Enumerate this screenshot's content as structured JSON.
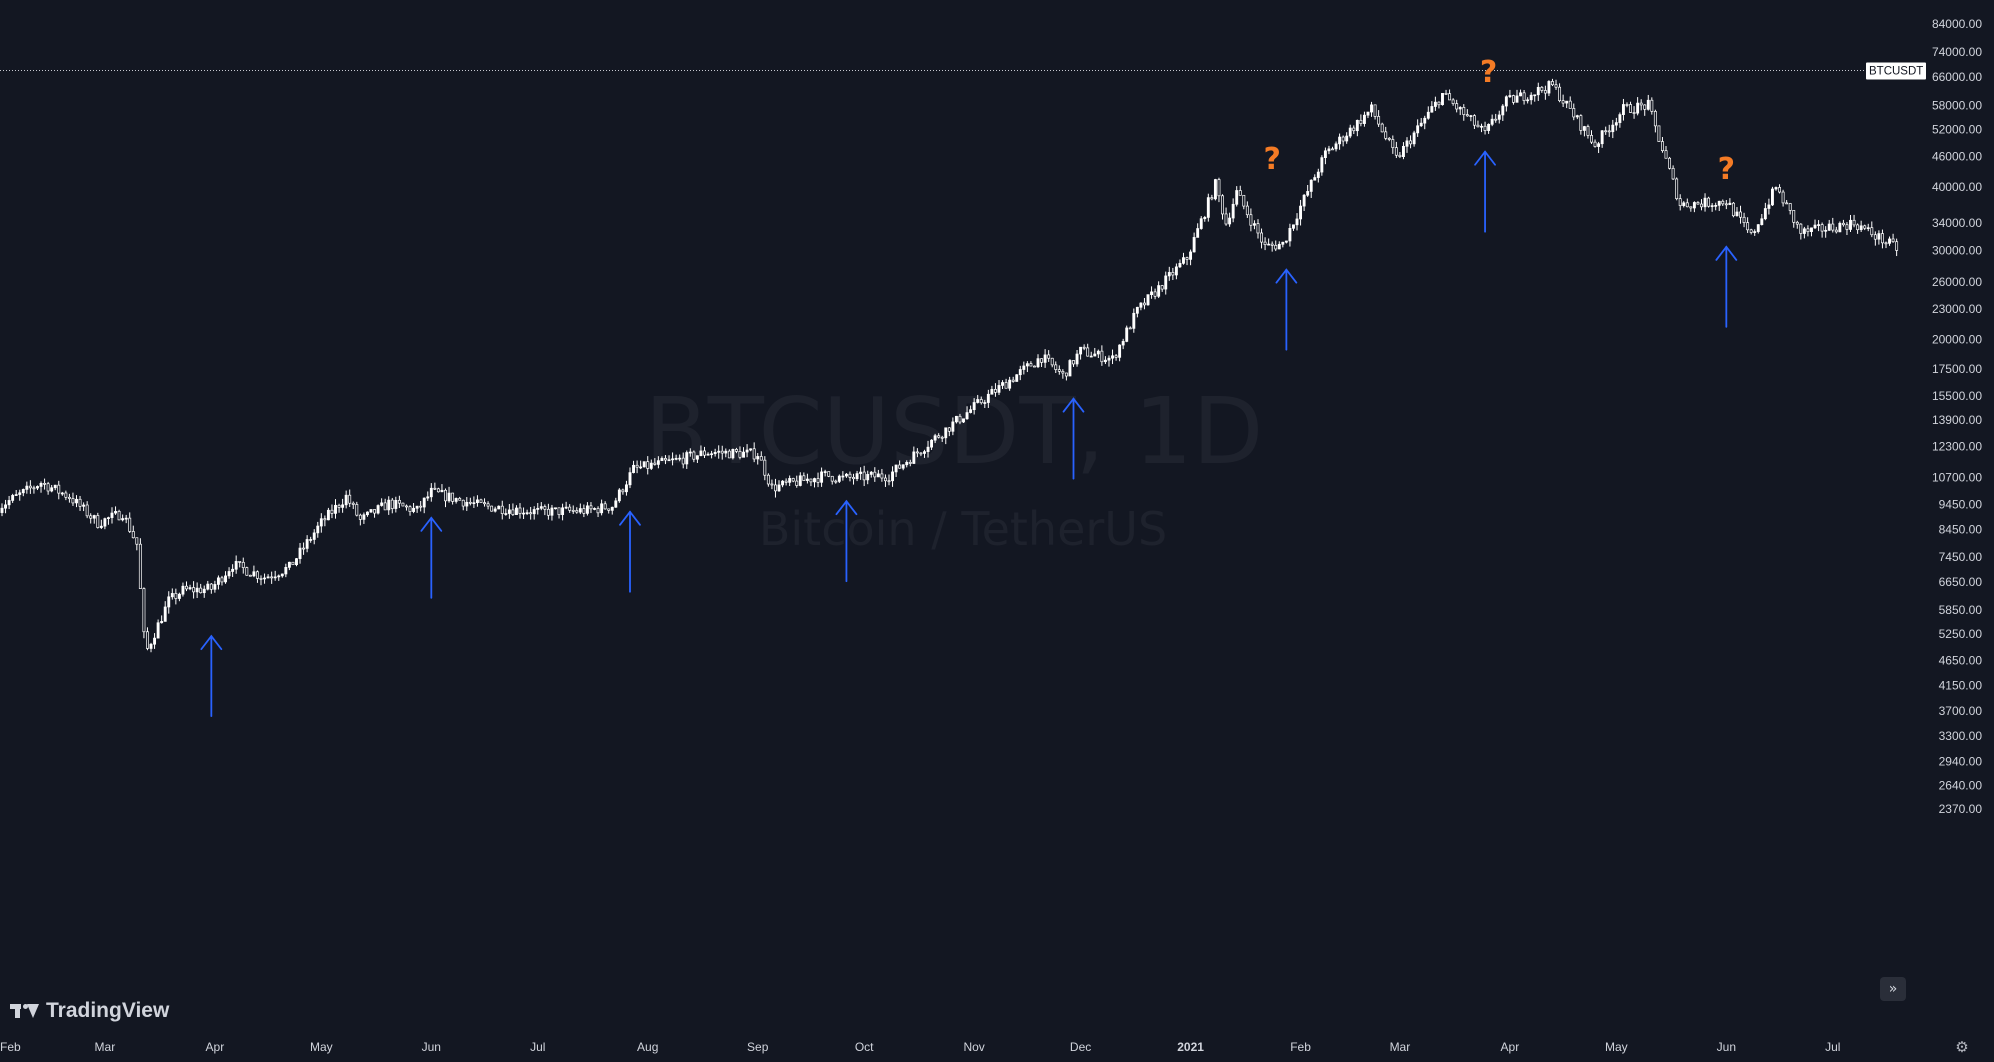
{
  "symbol_tag": "BTCUSDT",
  "watermark": {
    "title": "BTCUSDT, 1D",
    "subtitle": "Bitcoin / TetherUS"
  },
  "logo": {
    "text": "TradingView",
    "icon": "tradingview-logo-icon"
  },
  "controls": {
    "scroll_right_icon": "double-chevron-right-icon",
    "settings_icon": "gear-icon"
  },
  "colors": {
    "background": "#131722",
    "candles": "#ffffff",
    "arrows": "#2962ff",
    "question_marks": "#f47b25",
    "text": "#d1d4dc"
  },
  "chart_data": {
    "type": "candlestick",
    "scale": "log",
    "grid": false,
    "y_axis_position": "right",
    "y_ticks": [
      84000,
      74000,
      66000,
      58000,
      52000,
      46000,
      40000,
      34000,
      30000,
      26000,
      23000,
      20000,
      17500,
      15500,
      13900,
      12300,
      10700,
      9450,
      8450,
      7450,
      6650,
      5850,
      5250,
      4650,
      4150,
      3700,
      3300,
      2940,
      2640,
      2370
    ],
    "y_tick_labels": [
      "84000.00",
      "74000.00",
      "66000.00",
      "58000.00",
      "52000.00",
      "46000.00",
      "40000.00",
      "34000.00",
      "30000.00",
      "26000.00",
      "23000.00",
      "20000.00",
      "17500.00",
      "15500.00",
      "13900.00",
      "12300.00",
      "10700.00",
      "9450.00",
      "8450.00",
      "7450.00",
      "6650.00",
      "5850.00",
      "5250.00",
      "4650.00",
      "4150.00",
      "3700.00",
      "3300.00",
      "2940.00",
      "2640.00",
      "2370.00"
    ],
    "x_labels": [
      "Feb",
      "Mar",
      "Apr",
      "May",
      "Jun",
      "Jul",
      "Aug",
      "Sep",
      "Oct",
      "Nov",
      "Dec",
      "2021",
      "Feb",
      "Mar",
      "Apr",
      "May",
      "Jun",
      "Jul"
    ],
    "x_label_dates": [
      "2020-02-01",
      "2020-03-01",
      "2020-04-01",
      "2020-05-01",
      "2020-06-01",
      "2020-07-01",
      "2020-08-01",
      "2020-09-01",
      "2020-10-01",
      "2020-11-01",
      "2020-12-01",
      "2021-01-01",
      "2021-02-01",
      "2021-03-01",
      "2021-04-01",
      "2021-05-01",
      "2021-06-01",
      "2021-07-01"
    ],
    "x_range": [
      "2020-02-01",
      "2021-07-25"
    ],
    "horizontal_line": {
      "label": "BTCUSDT",
      "price": 68000,
      "style": "dotted"
    },
    "price_path": [
      [
        "2020-01-31",
        9350
      ],
      [
        "2020-02-12",
        10450
      ],
      [
        "2020-02-20",
        9800
      ],
      [
        "2020-02-28",
        8700
      ],
      [
        "2020-03-06",
        9100
      ],
      [
        "2020-03-10",
        7900
      ],
      [
        "2020-03-12",
        5200
      ],
      [
        "2020-03-13",
        4900
      ],
      [
        "2020-03-19",
        6100
      ],
      [
        "2020-03-23",
        6400
      ],
      [
        "2020-03-31",
        6450
      ],
      [
        "2020-04-06",
        7200
      ],
      [
        "2020-04-15",
        6800
      ],
      [
        "2020-04-22",
        7100
      ],
      [
        "2020-05-01",
        8700
      ],
      [
        "2020-05-08",
        9800
      ],
      [
        "2020-05-12",
        8800
      ],
      [
        "2020-05-20",
        9500
      ],
      [
        "2020-05-28",
        9200
      ],
      [
        "2020-06-01",
        10000
      ],
      [
        "2020-06-15",
        9400
      ],
      [
        "2020-07-01",
        9150
      ],
      [
        "2020-07-15",
        9200
      ],
      [
        "2020-07-22",
        9400
      ],
      [
        "2020-07-28",
        11100
      ],
      [
        "2020-08-10",
        11600
      ],
      [
        "2020-08-18",
        12000
      ],
      [
        "2020-09-01",
        11900
      ],
      [
        "2020-09-05",
        10200
      ],
      [
        "2020-09-20",
        10800
      ],
      [
        "2020-09-25",
        10650
      ],
      [
        "2020-10-08",
        10800
      ],
      [
        "2020-10-21",
        12800
      ],
      [
        "2020-11-05",
        15500
      ],
      [
        "2020-11-20",
        18500
      ],
      [
        "2020-11-26",
        17000
      ],
      [
        "2020-12-01",
        19000
      ],
      [
        "2020-12-10",
        18300
      ],
      [
        "2020-12-17",
        22800
      ],
      [
        "2020-12-31",
        29000
      ],
      [
        "2021-01-08",
        40500
      ],
      [
        "2021-01-11",
        34000
      ],
      [
        "2021-01-14",
        39000
      ],
      [
        "2021-01-22",
        30500
      ],
      [
        "2021-01-27",
        30900
      ],
      [
        "2021-02-08",
        46500
      ],
      [
        "2021-02-21",
        57000
      ],
      [
        "2021-02-28",
        45500
      ],
      [
        "2021-03-13",
        61000
      ],
      [
        "2021-03-25",
        51000
      ],
      [
        "2021-03-31",
        59000
      ],
      [
        "2021-04-13",
        63500
      ],
      [
        "2021-04-25",
        48500
      ],
      [
        "2021-05-03",
        57000
      ],
      [
        "2021-05-10",
        58000
      ],
      [
        "2021-05-19",
        37000
      ],
      [
        "2021-06-01",
        37500
      ],
      [
        "2021-06-08",
        32000
      ],
      [
        "2021-06-15",
        40000
      ],
      [
        "2021-06-22",
        32500
      ],
      [
        "2021-07-07",
        34000
      ],
      [
        "2021-07-20",
        30000
      ]
    ],
    "annotations": {
      "up_arrows": [
        {
          "date": "2020-03-31",
          "price": 5200
        },
        {
          "date": "2020-06-01",
          "price": 8900
        },
        {
          "date": "2020-07-27",
          "price": 9150
        },
        {
          "date": "2020-09-26",
          "price": 9600
        },
        {
          "date": "2020-11-29",
          "price": 15300
        },
        {
          "date": "2021-01-28",
          "price": 27500
        },
        {
          "date": "2021-03-25",
          "price": 47000
        },
        {
          "date": "2021-06-01",
          "price": 30500
        }
      ],
      "question_marks": [
        {
          "date": "2021-01-24",
          "price": 43500,
          "text": "?"
        },
        {
          "date": "2021-03-26",
          "price": 64500,
          "text": "?"
        },
        {
          "date": "2021-06-01",
          "price": 41500,
          "text": "?"
        }
      ]
    }
  }
}
